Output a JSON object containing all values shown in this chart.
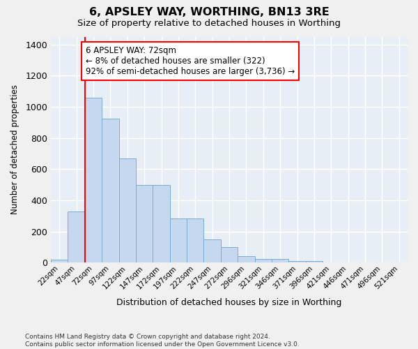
{
  "title": "6, APSLEY WAY, WORTHING, BN13 3RE",
  "subtitle": "Size of property relative to detached houses in Worthing",
  "xlabel": "Distribution of detached houses by size in Worthing",
  "ylabel": "Number of detached properties",
  "categories": [
    "22sqm",
    "47sqm",
    "72sqm",
    "97sqm",
    "122sqm",
    "147sqm",
    "172sqm",
    "197sqm",
    "222sqm",
    "247sqm",
    "272sqm",
    "296sqm",
    "321sqm",
    "346sqm",
    "371sqm",
    "396sqm",
    "421sqm",
    "446sqm",
    "471sqm",
    "496sqm",
    "521sqm"
  ],
  "values": [
    20,
    330,
    1060,
    925,
    670,
    500,
    500,
    285,
    285,
    150,
    100,
    40,
    22,
    22,
    10,
    10,
    0,
    0,
    0,
    0,
    0
  ],
  "bar_color": "#c5d8ef",
  "bar_edge_color": "#7aadd4",
  "fig_bg_color": "#f0f0f0",
  "plot_bg_color": "#e8eef6",
  "grid_color": "#ffffff",
  "red_line_index": 2,
  "annotation_box_text": "6 APSLEY WAY: 72sqm\n← 8% of detached houses are smaller (322)\n92% of semi-detached houses are larger (3,736) →",
  "footnote_line1": "Contains HM Land Registry data © Crown copyright and database right 2024.",
  "footnote_line2": "Contains public sector information licensed under the Open Government Licence v3.0.",
  "ylim_max": 1450,
  "yticks": [
    0,
    200,
    400,
    600,
    800,
    1000,
    1200,
    1400
  ]
}
